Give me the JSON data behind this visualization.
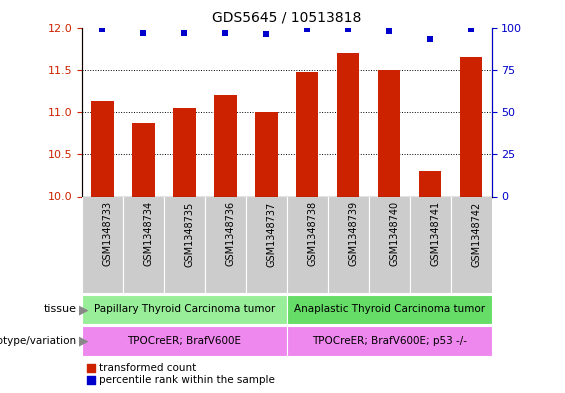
{
  "title": "GDS5645 / 10513818",
  "samples": [
    "GSM1348733",
    "GSM1348734",
    "GSM1348735",
    "GSM1348736",
    "GSM1348737",
    "GSM1348738",
    "GSM1348739",
    "GSM1348740",
    "GSM1348741",
    "GSM1348742"
  ],
  "bar_values": [
    11.13,
    10.87,
    11.05,
    11.2,
    11.0,
    11.47,
    11.7,
    11.5,
    10.3,
    11.65
  ],
  "dot_values": [
    99,
    97,
    97,
    97,
    96,
    99,
    99,
    98,
    93,
    99
  ],
  "bar_color": "#cc2200",
  "dot_color": "#0000cc",
  "ylim_left": [
    10,
    12
  ],
  "ylim_right": [
    0,
    100
  ],
  "yticks_left": [
    10,
    10.5,
    11,
    11.5,
    12
  ],
  "yticks_right": [
    0,
    25,
    50,
    75,
    100
  ],
  "tissue_labels": [
    "Papillary Thyroid Carcinoma tumor",
    "Anaplastic Thyroid Carcinoma tumor"
  ],
  "tissue_colors": [
    "#99ee99",
    "#66dd66"
  ],
  "genotype_labels": [
    "TPOCreER; BrafV600E",
    "TPOCreER; BrafV600E; p53 -/-"
  ],
  "genotype_color": "#ee88ee",
  "split_index": 5,
  "legend_red_label": "transformed count",
  "legend_blue_label": "percentile rank within the sample",
  "tissue_row_label": "tissue",
  "genotype_row_label": "genotype/variation",
  "color_left": "#cc2200",
  "color_right": "#0000cc",
  "grid_ticks": [
    10.5,
    11,
    11.5
  ],
  "sample_bg_color": "#cccccc",
  "bar_width": 0.55
}
